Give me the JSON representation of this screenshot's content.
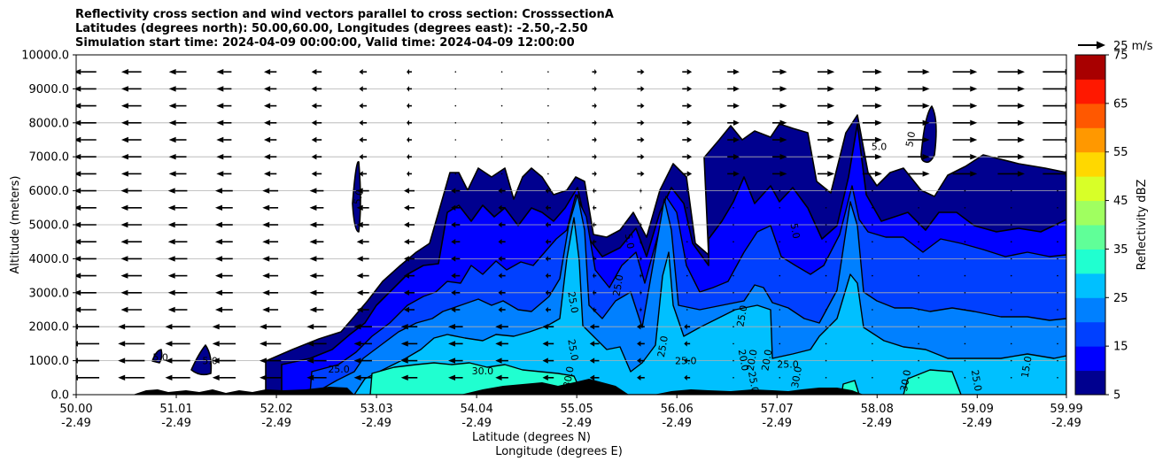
{
  "chart_data": {
    "type": "heatmap",
    "title_lines": [
      "Reflectivity cross section and wind vectors parallel to cross section: CrosssectionA",
      "Latitudes (degrees north): 50.00,60.00, Longitudes (degrees east): -2.50,-2.50",
      "Simulation start time: 2024-04-09 00:00:00, Valid time: 2024-04-09 12:00:00"
    ],
    "ylabel": "Altitude (meters)",
    "xlabel_lines": [
      "Latitude (degrees N)",
      "Longitude (degrees E)"
    ],
    "xlim": [
      50.0,
      59.99
    ],
    "ylim": [
      0,
      10000
    ],
    "x_ticks": [
      {
        "lat": "50.00",
        "lon": "-2.49"
      },
      {
        "lat": "51.01",
        "lon": "-2.49"
      },
      {
        "lat": "52.02",
        "lon": "-2.49"
      },
      {
        "lat": "53.03",
        "lon": "-2.49"
      },
      {
        "lat": "54.04",
        "lon": "-2.49"
      },
      {
        "lat": "55.05",
        "lon": "-2.49"
      },
      {
        "lat": "56.06",
        "lon": "-2.49"
      },
      {
        "lat": "57.07",
        "lon": "-2.49"
      },
      {
        "lat": "58.08",
        "lon": "-2.49"
      },
      {
        "lat": "59.09",
        "lon": "-2.49"
      },
      {
        "lat": "59.99",
        "lon": "-2.49"
      }
    ],
    "y_ticks": [
      "0.0",
      "1000.0",
      "2000.0",
      "3000.0",
      "4000.0",
      "5000.0",
      "6000.0",
      "7000.0",
      "8000.0",
      "9000.0",
      "10000.0"
    ],
    "grid": "horizontal",
    "colorbar": {
      "label": "Reflectivity dBZ",
      "ticks": [
        "5",
        "15",
        "25",
        "35",
        "45",
        "55",
        "65",
        "75"
      ],
      "levels": [
        5,
        10,
        15,
        20,
        25,
        30,
        35,
        40,
        45,
        50,
        55,
        60,
        65,
        70,
        75
      ],
      "colors": [
        "#00008f",
        "#0000ff",
        "#0040ff",
        "#0080ff",
        "#00c0ff",
        "#20ffd0",
        "#60ff98",
        "#a0ff60",
        "#d8ff28",
        "#ffd800",
        "#ff9800",
        "#ff5800",
        "#ff1800",
        "#a80000"
      ]
    },
    "quiver_key": "25 m/s",
    "contour_labels": [
      {
        "text": "5.0",
        "x": 50.85,
        "y": 1000
      },
      {
        "text": "5.0",
        "x": 51.35,
        "y": 900
      },
      {
        "text": "5.0",
        "x": 52.88,
        "y": 5800
      },
      {
        "text": "25.0",
        "x": 52.65,
        "y": 650
      },
      {
        "text": "30.0",
        "x": 54.1,
        "y": 600
      },
      {
        "text": "25.0",
        "x": 54.98,
        "y": 1300
      },
      {
        "text": "30.0",
        "x": 55.0,
        "y": 500
      },
      {
        "text": "25.0",
        "x": 54.98,
        "y": 2700
      },
      {
        "text": "25.0",
        "x": 55.5,
        "y": 3200
      },
      {
        "text": "5.0",
        "x": 55.55,
        "y": 4500
      },
      {
        "text": "25.0",
        "x": 55.95,
        "y": 1400
      },
      {
        "text": "25.0",
        "x": 56.15,
        "y": 900
      },
      {
        "text": "25.0",
        "x": 56.75,
        "y": 2300
      },
      {
        "text": "20.0",
        "x": 56.7,
        "y": 1000
      },
      {
        "text": "20.0",
        "x": 56.85,
        "y": 1000
      },
      {
        "text": "25.0",
        "x": 57.18,
        "y": 800
      },
      {
        "text": "30.0",
        "x": 57.3,
        "y": 500
      },
      {
        "text": "25.0",
        "x": 56.8,
        "y": 350
      },
      {
        "text": "20.0",
        "x": 57.0,
        "y": 1000
      },
      {
        "text": "5.0",
        "x": 58.1,
        "y": 7200
      },
      {
        "text": "5.0",
        "x": 58.45,
        "y": 7500
      },
      {
        "text": "5.0",
        "x": 57.22,
        "y": 4800
      },
      {
        "text": "30.0",
        "x": 58.4,
        "y": 400
      },
      {
        "text": "25.0",
        "x": 59.05,
        "y": 400
      },
      {
        "text": "15.0",
        "x": 59.62,
        "y": 800
      }
    ]
  }
}
